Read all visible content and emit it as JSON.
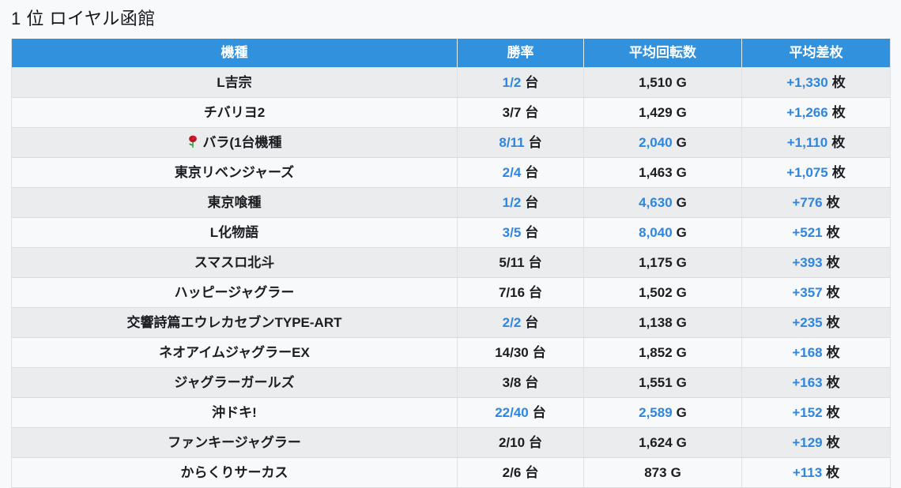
{
  "page_title": "1 位 ロイヤル函館",
  "colors": {
    "header_bg": "#3291DC",
    "header_text": "#FFFFFF",
    "accent_blue": "#2E86DE",
    "text_dark": "#1A1D21",
    "row_alt_bg": "#EBECEE",
    "row_bg": "#F8F9FB"
  },
  "table": {
    "columns": [
      {
        "label": "機種"
      },
      {
        "label": "勝率"
      },
      {
        "label": "平均回転数"
      },
      {
        "label": "平均差枚"
      }
    ],
    "units": {
      "win": "台",
      "spins": "G",
      "diff": "枚"
    },
    "icons": {
      "rose": "rose-icon"
    },
    "rows": [
      {
        "machine": "L吉宗",
        "rose": false,
        "win": "1/2",
        "win_blue": true,
        "spins": "1,510",
        "spins_blue": false,
        "diff": "+1,330",
        "diff_blue": true
      },
      {
        "machine": "チバリヨ2",
        "rose": false,
        "win": "3/7",
        "win_blue": false,
        "spins": "1,429",
        "spins_blue": false,
        "diff": "+1,266",
        "diff_blue": true
      },
      {
        "machine": "バラ(1台機種",
        "rose": true,
        "win": "8/11",
        "win_blue": true,
        "spins": "2,040",
        "spins_blue": true,
        "diff": "+1,110",
        "diff_blue": true
      },
      {
        "machine": "東京リベンジャーズ",
        "rose": false,
        "win": "2/4",
        "win_blue": true,
        "spins": "1,463",
        "spins_blue": false,
        "diff": "+1,075",
        "diff_blue": true
      },
      {
        "machine": "東京喰種",
        "rose": false,
        "win": "1/2",
        "win_blue": true,
        "spins": "4,630",
        "spins_blue": true,
        "diff": "+776",
        "diff_blue": true
      },
      {
        "machine": "L化物語",
        "rose": false,
        "win": "3/5",
        "win_blue": true,
        "spins": "8,040",
        "spins_blue": true,
        "diff": "+521",
        "diff_blue": true
      },
      {
        "machine": "スマスロ北斗",
        "rose": false,
        "win": "5/11",
        "win_blue": false,
        "spins": "1,175",
        "spins_blue": false,
        "diff": "+393",
        "diff_blue": true
      },
      {
        "machine": "ハッピージャグラー",
        "rose": false,
        "win": "7/16",
        "win_blue": false,
        "spins": "1,502",
        "spins_blue": false,
        "diff": "+357",
        "diff_blue": true
      },
      {
        "machine": "交響詩篇エウレカセブンTYPE-ART",
        "rose": false,
        "win": "2/2",
        "win_blue": true,
        "spins": "1,138",
        "spins_blue": false,
        "diff": "+235",
        "diff_blue": true
      },
      {
        "machine": "ネオアイムジャグラーEX",
        "rose": false,
        "win": "14/30",
        "win_blue": false,
        "spins": "1,852",
        "spins_blue": false,
        "diff": "+168",
        "diff_blue": true
      },
      {
        "machine": "ジャグラーガールズ",
        "rose": false,
        "win": "3/8",
        "win_blue": false,
        "spins": "1,551",
        "spins_blue": false,
        "diff": "+163",
        "diff_blue": true
      },
      {
        "machine": "沖ドキ!",
        "rose": false,
        "win": "22/40",
        "win_blue": true,
        "spins": "2,589",
        "spins_blue": true,
        "diff": "+152",
        "diff_blue": true
      },
      {
        "machine": "ファンキージャグラー",
        "rose": false,
        "win": "2/10",
        "win_blue": false,
        "spins": "1,624",
        "spins_blue": false,
        "diff": "+129",
        "diff_blue": true
      },
      {
        "machine": "からくりサーカス",
        "rose": false,
        "win": "2/6",
        "win_blue": false,
        "spins": "873",
        "spins_blue": false,
        "diff": "+113",
        "diff_blue": true
      }
    ]
  }
}
